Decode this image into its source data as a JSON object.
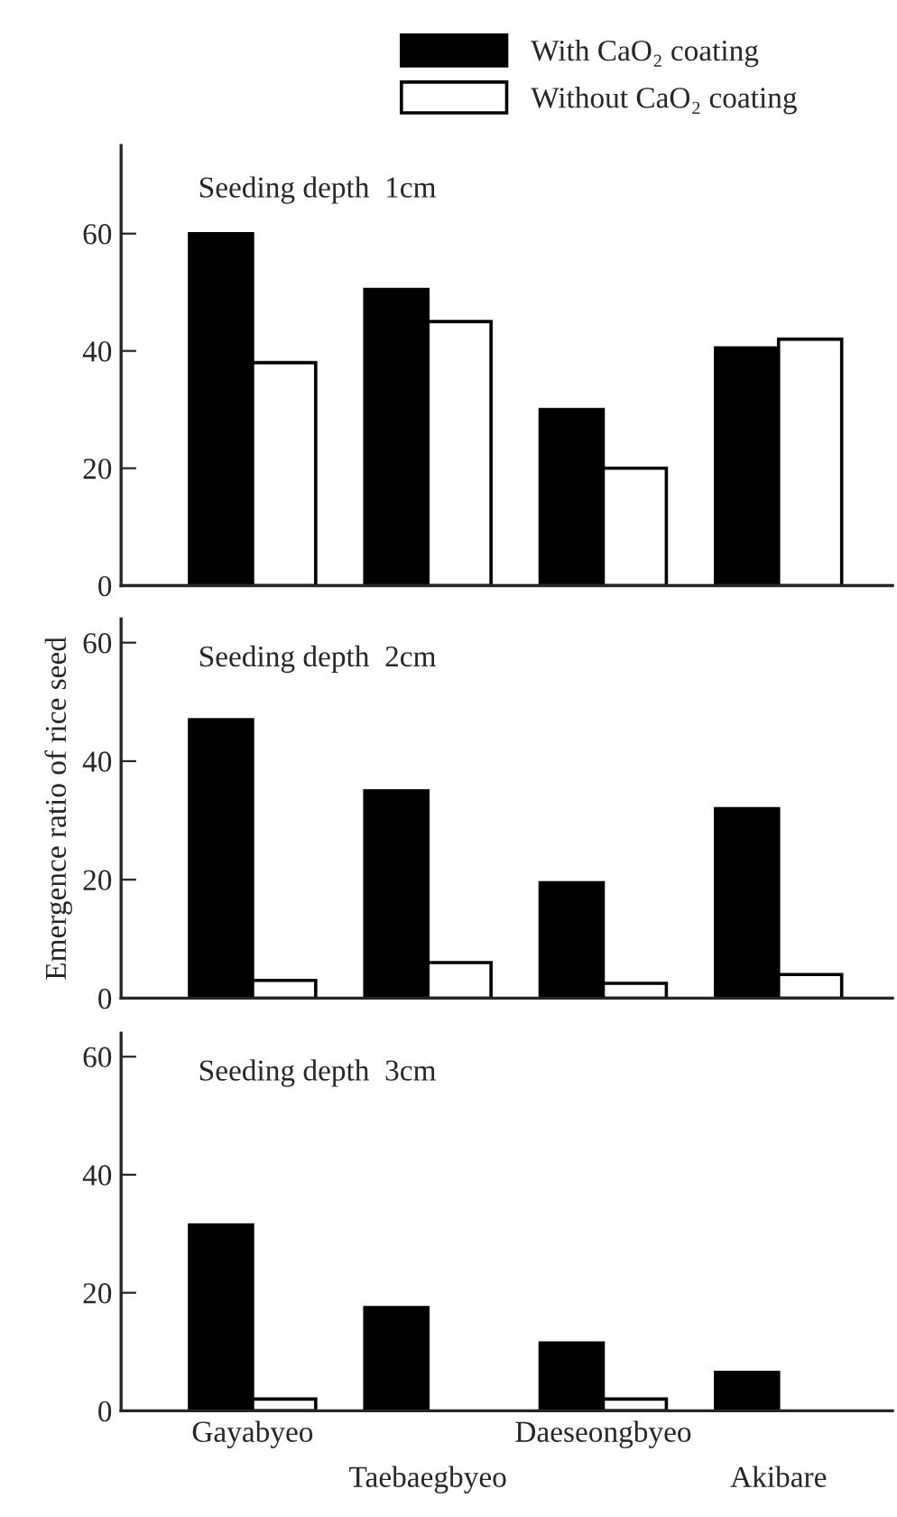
{
  "chart_data": [
    {
      "type": "bar",
      "title": "Seeding depth  1cm",
      "ylim": [
        0,
        75
      ],
      "yticks": [
        0,
        20,
        40,
        60
      ],
      "tick_labels": "y",
      "legend": "top",
      "grid": false,
      "series": [
        {
          "name": "With CaO₂ coating",
          "color": "#000000",
          "values": [
            60,
            50.5,
            30,
            40.5
          ]
        },
        {
          "name": "Without CaO₂ coating",
          "color": "#ffffff",
          "values": [
            38,
            45,
            20,
            42
          ]
        }
      ]
    },
    {
      "type": "bar",
      "title": "Seeding depth  2cm",
      "ylabel": "Emergence ratio of rice seed",
      "ylim": [
        0,
        64
      ],
      "yticks": [
        0,
        20,
        40,
        60
      ],
      "tick_labels": "y",
      "grid": false,
      "series": [
        {
          "color": "#000000",
          "values": [
            47,
            35,
            19.5,
            32
          ]
        },
        {
          "color": "#ffffff",
          "values": [
            3,
            6,
            2.5,
            4
          ]
        }
      ]
    },
    {
      "type": "bar",
      "title": "Seeding depth  3cm",
      "categories": [
        "Gayabyeo",
        "Taebaegbyeo",
        "Daeseongbyeo",
        "Akibare"
      ],
      "ylim": [
        0,
        64
      ],
      "yticks": [
        0,
        20,
        40,
        60
      ],
      "grid": false,
      "series": [
        {
          "color": "#000000",
          "values": [
            31.5,
            17.5,
            11.5,
            6.5
          ]
        },
        {
          "color": "#ffffff",
          "values": [
            2,
            null,
            2,
            null
          ]
        }
      ]
    }
  ]
}
